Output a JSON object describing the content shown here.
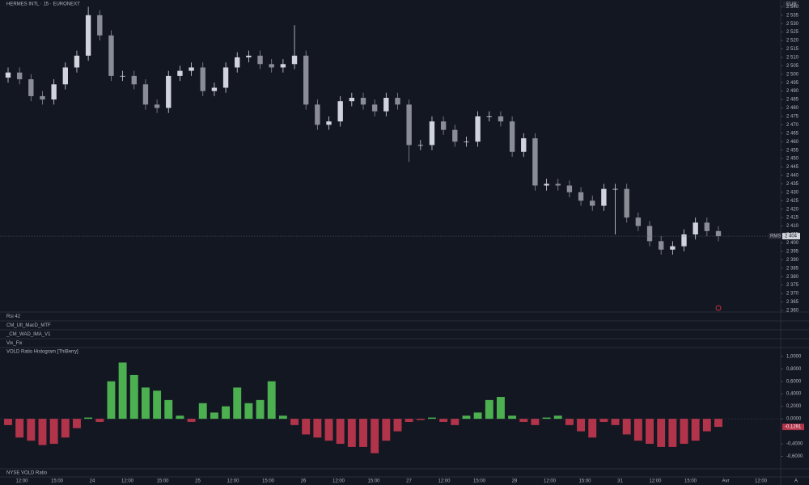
{
  "header": {
    "title": "HERMES INTL · 15 · EURONEXT",
    "currency": "EUR"
  },
  "panes": [
    "Rsi 42",
    "CM_Ult_MacD_MTF",
    "_CM_WAD_IMA_V1",
    "Vix_Fix"
  ],
  "time_axis": [
    "12:00",
    "15:00",
    "24",
    "12:00",
    "15:00",
    "25",
    "12:00",
    "15:00",
    "26",
    "12:00",
    "15:00",
    "27",
    "12:00",
    "15:00",
    "28",
    "12:00",
    "15:00",
    "31",
    "12:00",
    "15:00",
    "Avr",
    "12:00",
    "A"
  ],
  "chart_data": [
    {
      "type": "candlestick",
      "symbol_tag": "RMS",
      "up_color": "#d1d4dc",
      "down_color": "#8a8d96",
      "open": [
        2498,
        2501,
        2497,
        2487,
        2485,
        2494,
        2504,
        2511,
        2535,
        2523,
        2499,
        2499,
        2494,
        2482,
        2480,
        2499,
        2502,
        2504,
        2490,
        2492,
        2504,
        2510,
        2511,
        2506,
        2504,
        2506,
        2511,
        2482,
        2470,
        2472,
        2484,
        2486,
        2482,
        2478,
        2486,
        2482,
        2458,
        2458,
        2472,
        2467,
        2460,
        2460,
        2475,
        2475,
        2472,
        2454,
        2462,
        2434,
        2435,
        2434,
        2430,
        2425,
        2422,
        2432,
        2432,
        2415,
        2410,
        2401,
        2396,
        2398,
        2405,
        2412,
        2407
      ],
      "high": [
        2504,
        2504,
        2500,
        2490,
        2497,
        2507,
        2514,
        2540,
        2538,
        2526,
        2502,
        2502,
        2497,
        2485,
        2502,
        2505,
        2507,
        2507,
        2495,
        2507,
        2513,
        2514,
        2514,
        2509,
        2509,
        2529,
        2514,
        2485,
        2475,
        2487,
        2489,
        2489,
        2485,
        2489,
        2489,
        2485,
        2461,
        2475,
        2475,
        2470,
        2463,
        2478,
        2478,
        2478,
        2475,
        2465,
        2465,
        2438,
        2438,
        2437,
        2433,
        2428,
        2435,
        2435,
        2435,
        2418,
        2413,
        2404,
        2401,
        2408,
        2415,
        2415,
        2410
      ],
      "low": [
        2495,
        2494,
        2484,
        2482,
        2482,
        2491,
        2501,
        2508,
        2520,
        2496,
        2496,
        2491,
        2479,
        2477,
        2477,
        2496,
        2499,
        2487,
        2487,
        2489,
        2501,
        2507,
        2503,
        2501,
        2501,
        2503,
        2479,
        2467,
        2467,
        2469,
        2481,
        2479,
        2475,
        2475,
        2479,
        2448,
        2455,
        2455,
        2464,
        2457,
        2457,
        2457,
        2472,
        2469,
        2451,
        2451,
        2431,
        2431,
        2431,
        2427,
        2422,
        2419,
        2419,
        2405,
        2412,
        2407,
        2398,
        2393,
        2393,
        2395,
        2402,
        2404,
        2401
      ],
      "close": [
        2501,
        2497,
        2487,
        2485,
        2494,
        2504,
        2511,
        2535,
        2523,
        2499,
        2499,
        2494,
        2482,
        2480,
        2499,
        2502,
        2504,
        2490,
        2492,
        2504,
        2510,
        2511,
        2506,
        2504,
        2506,
        2511,
        2482,
        2470,
        2472,
        2484,
        2486,
        2482,
        2478,
        2486,
        2482,
        2458,
        2458,
        2472,
        2467,
        2460,
        2460,
        2475,
        2475,
        2472,
        2454,
        2462,
        2434,
        2435,
        2434,
        2430,
        2425,
        2422,
        2432,
        2432,
        2415,
        2410,
        2401,
        2396,
        2398,
        2405,
        2412,
        2407,
        2404
      ],
      "ylim": [
        2359,
        2544
      ],
      "yticks": [
        {
          "value": 2540,
          "label": "2 540"
        },
        {
          "value": 2535,
          "label": "2 535"
        },
        {
          "value": 2530,
          "label": "2 530"
        },
        {
          "value": 2525,
          "label": "2 525"
        },
        {
          "value": 2520,
          "label": "2 520"
        },
        {
          "value": 2515,
          "label": "2 515"
        },
        {
          "value": 2510,
          "label": "2 510"
        },
        {
          "value": 2505,
          "label": "2 505"
        },
        {
          "value": 2500,
          "label": "2 500"
        },
        {
          "value": 2495,
          "label": "2 495"
        },
        {
          "value": 2490,
          "label": "2 490"
        },
        {
          "value": 2485,
          "label": "2 485"
        },
        {
          "value": 2480,
          "label": "2 480"
        },
        {
          "value": 2475,
          "label": "2 475"
        },
        {
          "value": 2470,
          "label": "2 470"
        },
        {
          "value": 2465,
          "label": "2 465"
        },
        {
          "value": 2460,
          "label": "2 460"
        },
        {
          "value": 2455,
          "label": "2 455"
        },
        {
          "value": 2450,
          "label": "2 450"
        },
        {
          "value": 2445,
          "label": "2 445"
        },
        {
          "value": 2440,
          "label": "2 440"
        },
        {
          "value": 2435,
          "label": "2 435"
        },
        {
          "value": 2430,
          "label": "2 430"
        },
        {
          "value": 2425,
          "label": "2 425"
        },
        {
          "value": 2420,
          "label": "2 420"
        },
        {
          "value": 2415,
          "label": "2 415"
        },
        {
          "value": 2410,
          "label": "2 410"
        },
        {
          "value": 2405,
          "label": "2 405"
        },
        {
          "value": 2400,
          "label": "2 400"
        },
        {
          "value": 2395,
          "label": "2 395"
        },
        {
          "value": 2390,
          "label": "2 390"
        },
        {
          "value": 2385,
          "label": "2 385"
        },
        {
          "value": 2380,
          "label": "2 380"
        },
        {
          "value": 2375,
          "label": "2 375"
        },
        {
          "value": 2370,
          "label": "2 370"
        },
        {
          "value": 2365,
          "label": "2 365"
        },
        {
          "value": 2360,
          "label": "2 360"
        }
      ],
      "last_price": {
        "value": 2404,
        "label": "2 404"
      }
    },
    {
      "type": "bar",
      "title": "VOLD Ratio Histogram [ThiBerry]",
      "footer": "NYSE VOLD Ratio",
      "positive_color": "#4caf50",
      "negative_color": "#b2344a",
      "values": [
        -0.1,
        -0.3,
        -0.35,
        -0.42,
        -0.4,
        -0.3,
        -0.15,
        0.02,
        -0.05,
        0.6,
        0.9,
        0.7,
        0.5,
        0.45,
        0.3,
        0.05,
        -0.05,
        0.25,
        0.1,
        0.2,
        0.5,
        0.25,
        0.3,
        0.6,
        0.05,
        -0.1,
        -0.25,
        -0.3,
        -0.35,
        -0.4,
        -0.45,
        -0.45,
        -0.55,
        -0.35,
        -0.2,
        -0.05,
        -0.02,
        0.02,
        -0.05,
        -0.1,
        0.05,
        0.1,
        0.3,
        0.35,
        0.05,
        -0.05,
        -0.1,
        0.02,
        0.05,
        -0.1,
        -0.2,
        -0.3,
        -0.05,
        -0.1,
        -0.25,
        -0.35,
        -0.4,
        -0.45,
        -0.45,
        -0.4,
        -0.35,
        -0.2,
        -0.1291
      ],
      "ylim": [
        -0.8,
        1.1
      ],
      "yticks": [
        {
          "value": 1,
          "label": "1,0000"
        },
        {
          "value": 0.8,
          "label": "0,8000"
        },
        {
          "value": 0.6,
          "label": "0,6000"
        },
        {
          "value": 0.4,
          "label": "0,4000"
        },
        {
          "value": 0.2,
          "label": "0,2000"
        },
        {
          "value": 0,
          "label": "0,0000"
        },
        {
          "value": -0.4,
          "label": "-0,4000"
        },
        {
          "value": -0.6,
          "label": "-0,6000"
        }
      ],
      "last_value": {
        "value": -0.1291,
        "label": "-0,1291"
      }
    }
  ]
}
